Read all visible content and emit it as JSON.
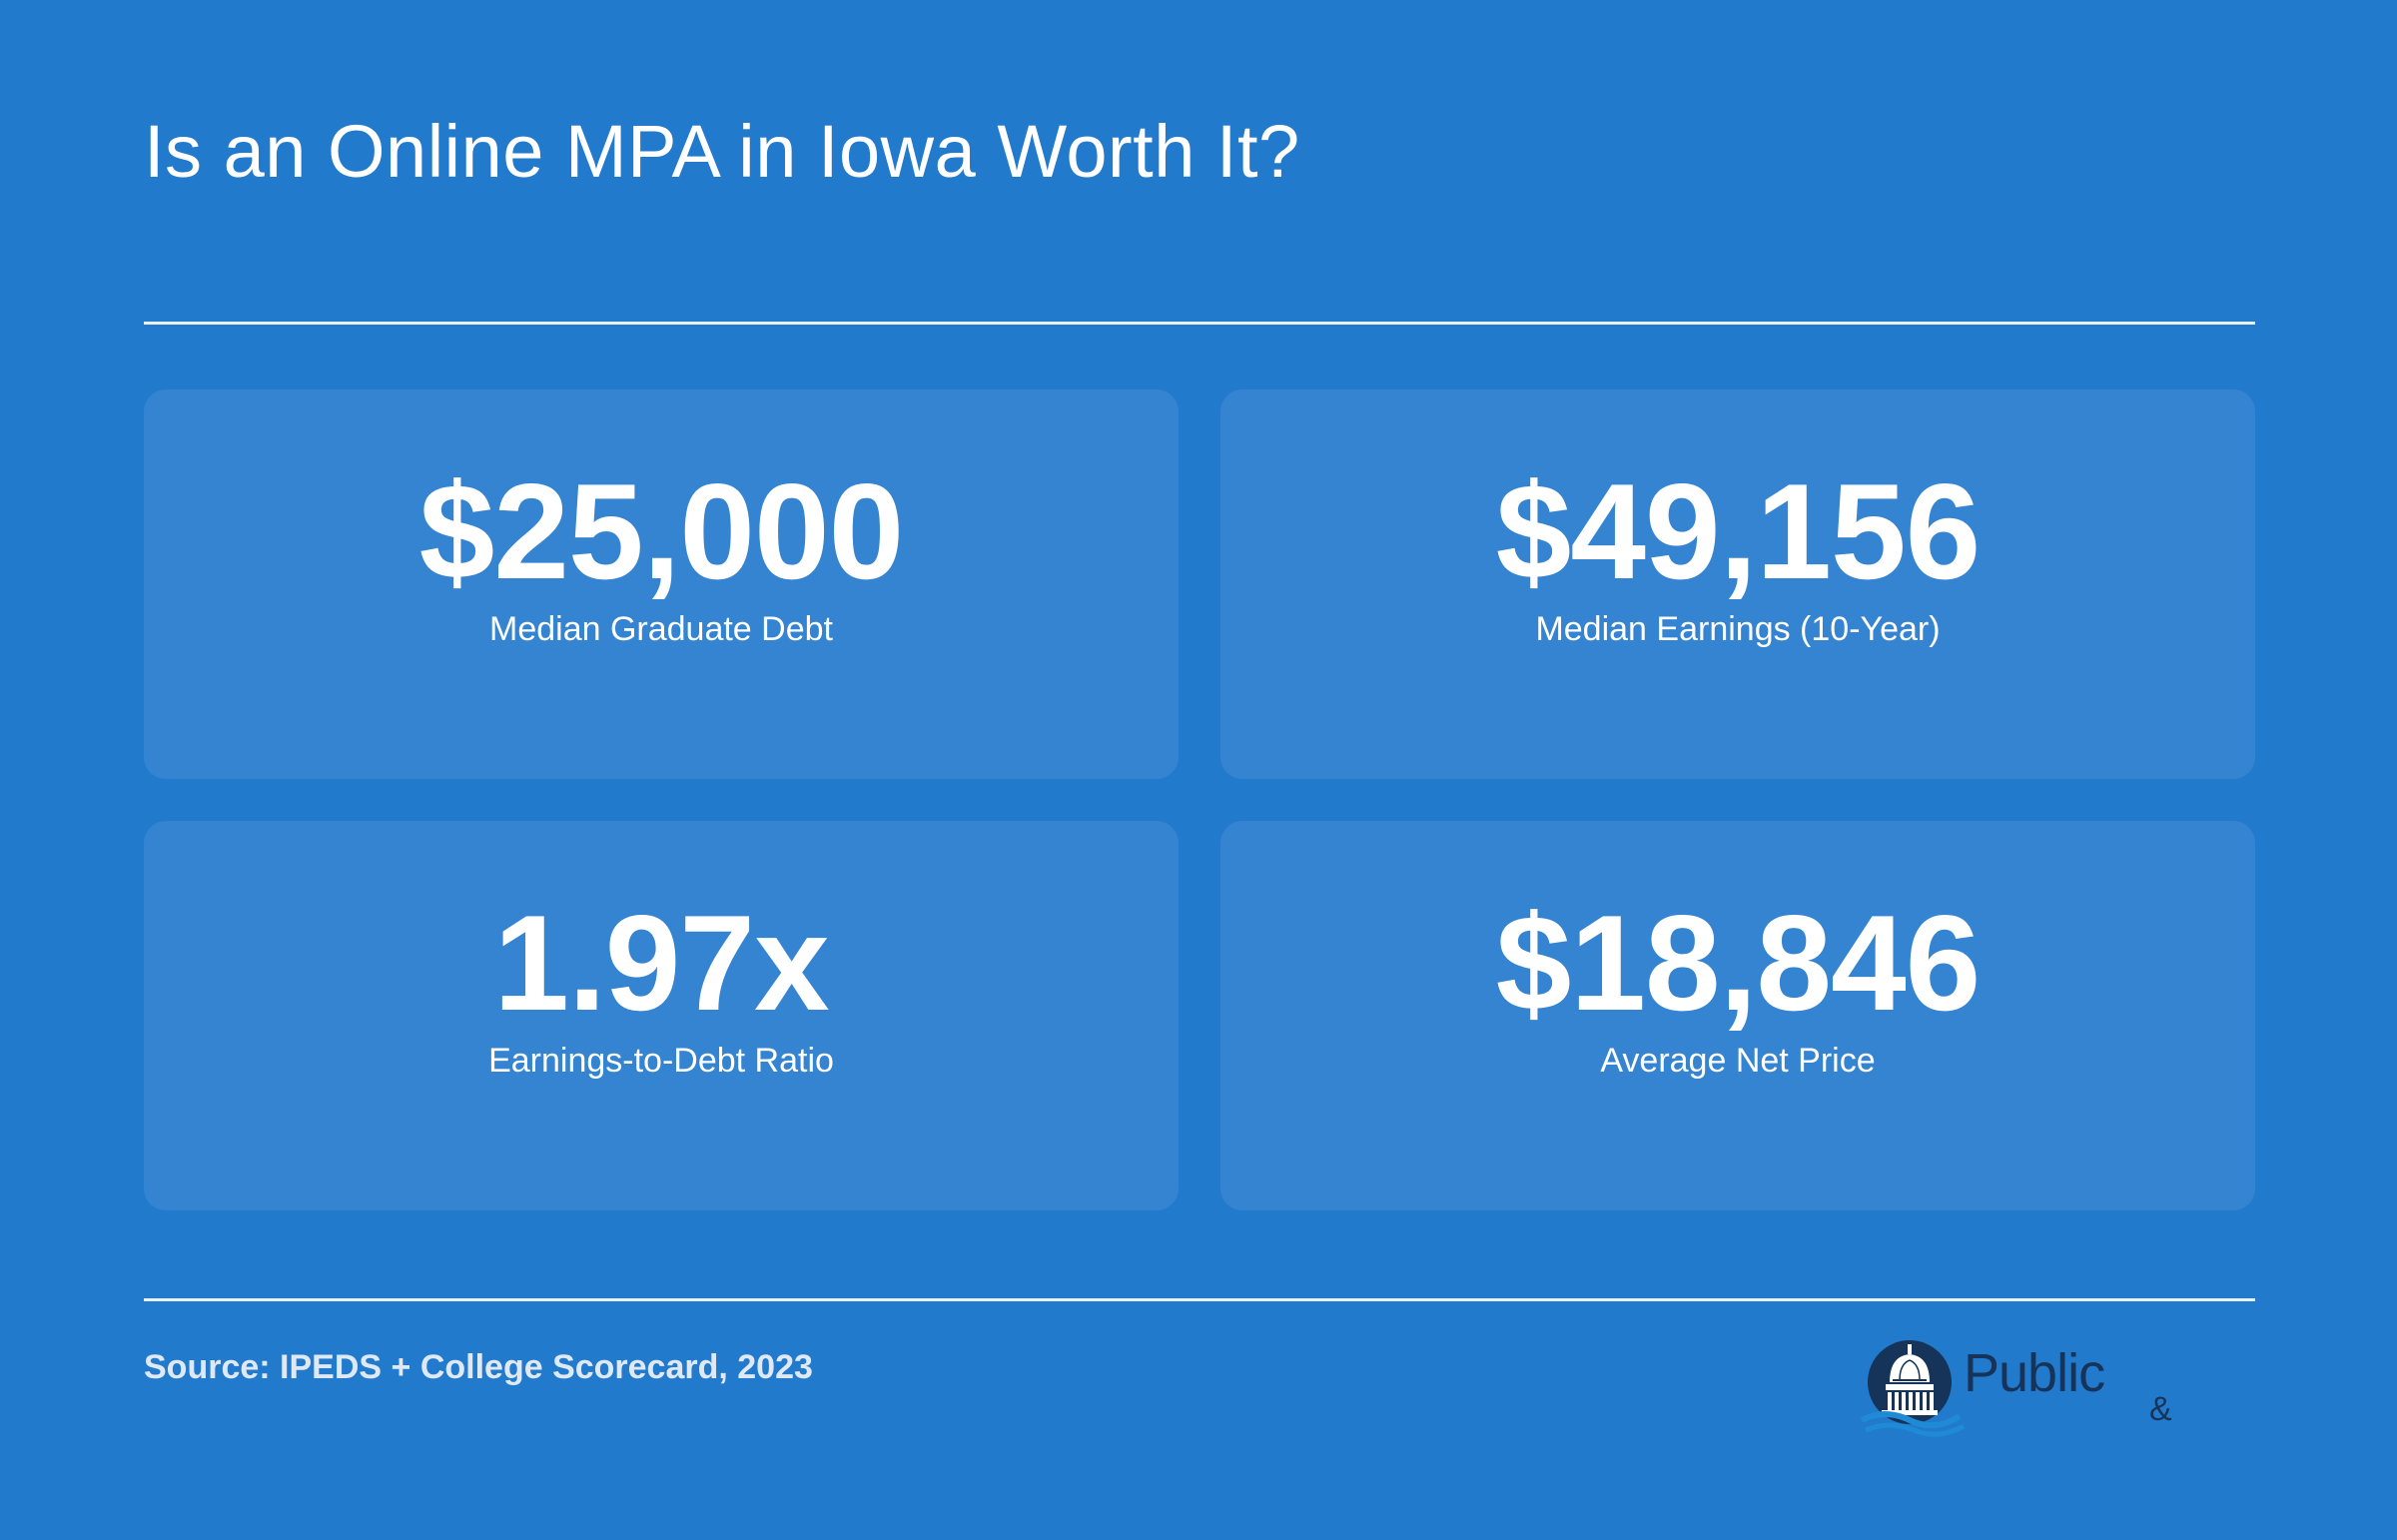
{
  "header": {
    "title": "Is an Online MPA in Iowa Worth It?"
  },
  "stats": [
    {
      "value": "$25,000",
      "label": "Median Graduate Debt"
    },
    {
      "value": "$49,156",
      "label": "Median Earnings (10-Year)"
    },
    {
      "value": "1.97x",
      "label": "Earnings-to-Debt Ratio"
    },
    {
      "value": "$18,846",
      "label": "Average Net Price"
    }
  ],
  "footer": {
    "source": "Source: IPEDS + College Scorecard, 2023",
    "logo_word": "Public",
    "logo_amp": "&",
    "logo_icon": "capitol-dome-icon"
  },
  "colors": {
    "background": "#227ACD",
    "card": "#3584D2",
    "text": "#FFFFFF",
    "logo_navy": "#16345A"
  }
}
